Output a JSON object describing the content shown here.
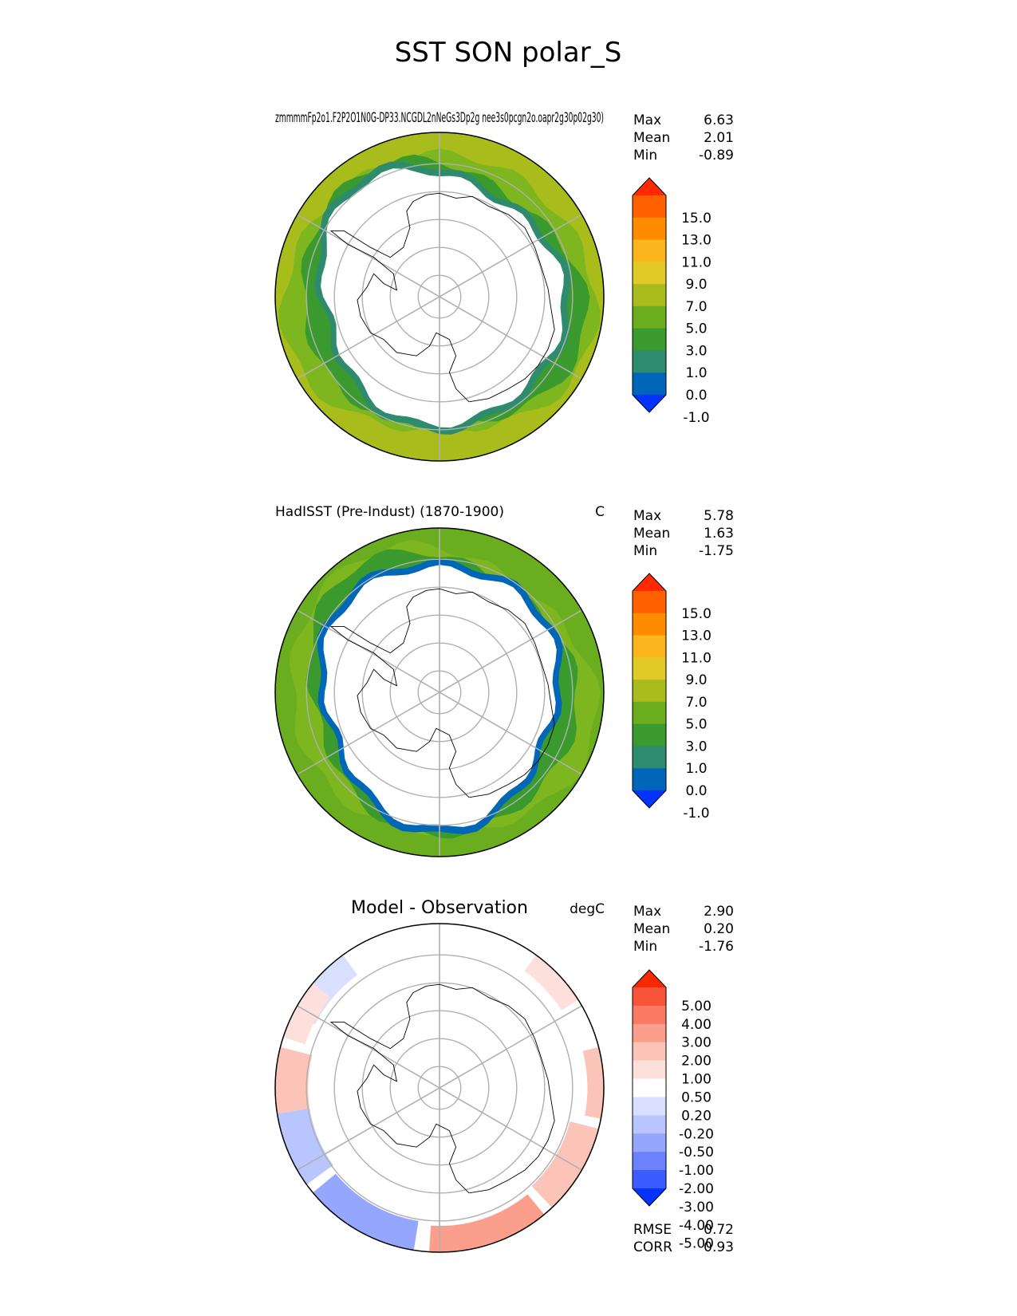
{
  "figure": {
    "title": "SST SON polar_S"
  },
  "colors": {
    "abs_levels": [
      "#0433ff",
      "#0066b8",
      "#2e8b6e",
      "#3a9a2e",
      "#6aad1e",
      "#a8bd1c",
      "#e1c928",
      "#fdb51e",
      "#ff8c00",
      "#ff6000",
      "#ff2a00"
    ],
    "diff_levels": [
      "#0433ff",
      "#3b5dff",
      "#6b82ff",
      "#95a6ff",
      "#b8c5ff",
      "#d9e0ff",
      "#ffffff",
      "#fde0dc",
      "#fcc3b8",
      "#fb9f8c",
      "#fa7a62",
      "#f8543a",
      "#f62a00"
    ],
    "ocean_warm": "#7db61f",
    "ocean_mid": "#3a9a2e",
    "ocean_cold": "#0066b8",
    "grid": "#b0b0b0"
  },
  "chart_data": [
    {
      "type": "heatmap",
      "panel": "test",
      "title_left": "zmmmmFp2o1.F2P2O1N0G-DP33.NCGDL2nNeGs3Dp2g nee3s0pcgn2o.oapr2g30p02g30)",
      "title_right": "",
      "stats": [
        {
          "label": "Max",
          "value": "6.63"
        },
        {
          "label": "Mean",
          "value": "2.01"
        },
        {
          "label": "Min",
          "value": "-0.89"
        }
      ],
      "colorbar_ticks": [
        "15.0",
        "13.0",
        "11.0",
        "9.0",
        "7.0",
        "5.0",
        "3.0",
        "1.0",
        "0.0",
        "-1.0"
      ],
      "colorbar": "abs",
      "pattern": "model"
    },
    {
      "type": "heatmap",
      "panel": "reference",
      "title_left": "HadISST (Pre-Indust) (1870-1900)",
      "title_right": "C",
      "stats": [
        {
          "label": "Max",
          "value": "5.78"
        },
        {
          "label": "Mean",
          "value": "1.63"
        },
        {
          "label": "Min",
          "value": "-1.75"
        }
      ],
      "colorbar_ticks": [
        "15.0",
        "13.0",
        "11.0",
        "9.0",
        "7.0",
        "5.0",
        "3.0",
        "1.0",
        "0.0",
        "-1.0"
      ],
      "colorbar": "abs",
      "pattern": "obs"
    },
    {
      "type": "heatmap",
      "panel": "difference",
      "title_left": "Model - Observation",
      "title_right": "degC",
      "stats": [
        {
          "label": "Max",
          "value": "2.90"
        },
        {
          "label": "Mean",
          "value": "0.20"
        },
        {
          "label": "Min",
          "value": "-1.76"
        }
      ],
      "colorbar_ticks": [
        "5.00",
        "4.00",
        "3.00",
        "2.00",
        "1.00",
        "0.50",
        "0.20",
        "-0.20",
        "-0.50",
        "-1.00",
        "-2.00",
        "-3.00",
        "-4.00",
        "-5.00"
      ],
      "colorbar": "diff",
      "pattern": "diff",
      "metrics": [
        {
          "label": "RMSE",
          "value": "0.72"
        },
        {
          "label": "CORR",
          "value": "0.93"
        }
      ]
    }
  ]
}
